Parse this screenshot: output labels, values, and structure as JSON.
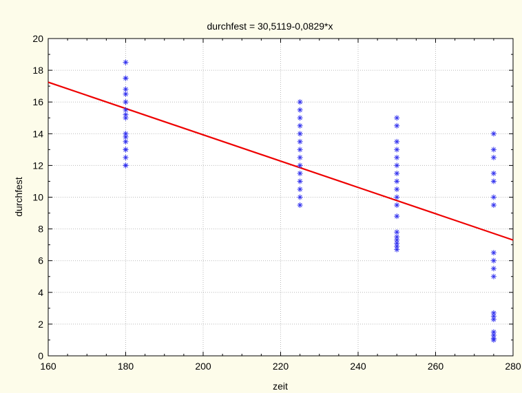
{
  "chart_data": {
    "type": "scatter",
    "title": "durchfest = 30,5119-0,0829*x",
    "xlabel": "zeit",
    "ylabel": "durchfest",
    "xlim": [
      160,
      280
    ],
    "ylim": [
      0,
      20
    ],
    "xticks": [
      "160",
      "180",
      "200",
      "220",
      "240",
      "260",
      "280"
    ],
    "yticks": [
      "0",
      "2",
      "4",
      "6",
      "8",
      "10",
      "12",
      "14",
      "16",
      "18",
      "20"
    ],
    "grid": true,
    "colors": {
      "points": "#3333ee",
      "line": "#ee0000",
      "background": "#fdfcea",
      "plot_area": "#ffffff"
    },
    "regression": {
      "intercept": 30.5119,
      "slope": -0.0829
    },
    "points": [
      {
        "x": 180,
        "y": 18.5
      },
      {
        "x": 180,
        "y": 17.5
      },
      {
        "x": 180,
        "y": 17.5
      },
      {
        "x": 180,
        "y": 16.8
      },
      {
        "x": 180,
        "y": 16.5
      },
      {
        "x": 180,
        "y": 16.0
      },
      {
        "x": 180,
        "y": 15.5
      },
      {
        "x": 180,
        "y": 15.2
      },
      {
        "x": 180,
        "y": 15.0
      },
      {
        "x": 180,
        "y": 14.0
      },
      {
        "x": 180,
        "y": 13.8
      },
      {
        "x": 180,
        "y": 13.5
      },
      {
        "x": 180,
        "y": 13.0
      },
      {
        "x": 180,
        "y": 13.0
      },
      {
        "x": 180,
        "y": 12.5
      },
      {
        "x": 180,
        "y": 12.0
      },
      {
        "x": 180,
        "y": 12.0
      },
      {
        "x": 225,
        "y": 16.0
      },
      {
        "x": 225,
        "y": 15.5
      },
      {
        "x": 225,
        "y": 15.0
      },
      {
        "x": 225,
        "y": 14.5
      },
      {
        "x": 225,
        "y": 14.0
      },
      {
        "x": 225,
        "y": 13.5
      },
      {
        "x": 225,
        "y": 13.0
      },
      {
        "x": 225,
        "y": 12.5
      },
      {
        "x": 225,
        "y": 12.0
      },
      {
        "x": 225,
        "y": 11.5
      },
      {
        "x": 225,
        "y": 11.0
      },
      {
        "x": 225,
        "y": 10.5
      },
      {
        "x": 225,
        "y": 10.0
      },
      {
        "x": 225,
        "y": 9.5
      },
      {
        "x": 250,
        "y": 15.0
      },
      {
        "x": 250,
        "y": 14.5
      },
      {
        "x": 250,
        "y": 13.5
      },
      {
        "x": 250,
        "y": 13.0
      },
      {
        "x": 250,
        "y": 12.5
      },
      {
        "x": 250,
        "y": 12.0
      },
      {
        "x": 250,
        "y": 11.5
      },
      {
        "x": 250,
        "y": 11.0
      },
      {
        "x": 250,
        "y": 10.5
      },
      {
        "x": 250,
        "y": 10.0
      },
      {
        "x": 250,
        "y": 9.5
      },
      {
        "x": 250,
        "y": 8.8
      },
      {
        "x": 250,
        "y": 7.8
      },
      {
        "x": 250,
        "y": 7.5
      },
      {
        "x": 250,
        "y": 7.3
      },
      {
        "x": 250,
        "y": 7.1
      },
      {
        "x": 250,
        "y": 6.9
      },
      {
        "x": 250,
        "y": 6.7
      },
      {
        "x": 275,
        "y": 14.0
      },
      {
        "x": 275,
        "y": 13.0
      },
      {
        "x": 275,
        "y": 12.5
      },
      {
        "x": 275,
        "y": 11.5
      },
      {
        "x": 275,
        "y": 11.0
      },
      {
        "x": 275,
        "y": 10.0
      },
      {
        "x": 275,
        "y": 9.5
      },
      {
        "x": 275,
        "y": 6.5
      },
      {
        "x": 275,
        "y": 6.0
      },
      {
        "x": 275,
        "y": 5.5
      },
      {
        "x": 275,
        "y": 5.0
      },
      {
        "x": 275,
        "y": 2.7
      },
      {
        "x": 275,
        "y": 2.5
      },
      {
        "x": 275,
        "y": 2.3
      },
      {
        "x": 275,
        "y": 1.5
      },
      {
        "x": 275,
        "y": 1.3
      },
      {
        "x": 275,
        "y": 1.1
      },
      {
        "x": 275,
        "y": 1.0
      }
    ]
  }
}
